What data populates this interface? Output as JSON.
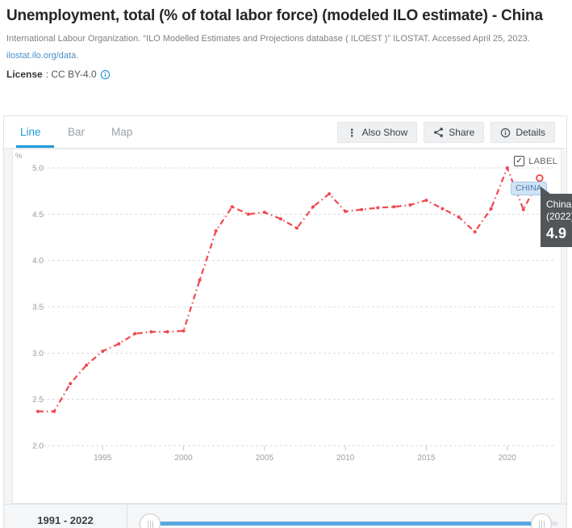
{
  "header": {
    "title": "Unemployment, total (% of total labor force) (modeled ILO estimate) - China",
    "source_citation": "International Labour Organization. “ILO Modelled Estimates and Projections database ( ILOEST )” ILOSTAT. Accessed April 25, 2023.",
    "source_link": "ilostat.ilo.org/data.",
    "license": {
      "label": "License",
      "value": ": CC BY-4.0"
    }
  },
  "toolbar": {
    "tabs": [
      {
        "label": "Line",
        "active": true
      },
      {
        "label": "Bar",
        "active": false
      },
      {
        "label": "Map",
        "active": false
      }
    ],
    "buttons": [
      {
        "label": "Also Show",
        "icon": "kebab-menu-icon"
      },
      {
        "label": "Share",
        "icon": "share-icon"
      },
      {
        "label": "Details",
        "icon": "info-icon"
      }
    ]
  },
  "chart": {
    "unit_label": "%",
    "label_toggle": {
      "label": "LABEL",
      "checked": true
    },
    "series_chip": "CHINA",
    "tooltip": {
      "country": "China",
      "year": "(2022)",
      "value": "4.9"
    }
  },
  "chart_data": {
    "type": "line",
    "title": "Unemployment, total (% of total labor force) (modeled ILO estimate) - China",
    "ylabel": "%",
    "ylim": [
      2.0,
      5.0
    ],
    "yticks": [
      2.0,
      2.5,
      3.0,
      3.5,
      4.0,
      4.5,
      5.0
    ],
    "xticks": [
      1995,
      2000,
      2005,
      2010,
      2015,
      2020
    ],
    "grid": "horizontal-dashed",
    "legend": "none",
    "line_style": "red dash-dot with point markers, last point open circle",
    "line_color": "#f0484e",
    "x": [
      1991,
      1992,
      1993,
      1994,
      1995,
      1996,
      1997,
      1998,
      1999,
      2000,
      2001,
      2002,
      2003,
      2004,
      2005,
      2006,
      2007,
      2008,
      2009,
      2010,
      2011,
      2012,
      2013,
      2014,
      2015,
      2016,
      2017,
      2018,
      2019,
      2020,
      2021,
      2022
    ],
    "series": [
      {
        "name": "China",
        "values": [
          2.37,
          2.37,
          2.67,
          2.87,
          3.02,
          3.1,
          3.21,
          3.23,
          3.23,
          3.24,
          3.79,
          4.32,
          4.58,
          4.5,
          4.52,
          4.45,
          4.35,
          4.58,
          4.72,
          4.53,
          4.55,
          4.57,
          4.58,
          4.6,
          4.65,
          4.56,
          4.47,
          4.31,
          4.56,
          5.0,
          4.55,
          4.89
        ]
      }
    ],
    "highlighted_point": {
      "year": 2022,
      "value": 4.9
    }
  },
  "footer": {
    "range_label": "1991 - 2022"
  },
  "colors": {
    "accent_blue": "#1e9bd7",
    "link_blue": "#4a8fc7",
    "line_red": "#f0484e",
    "tooltip_bg": "#525559",
    "chip_bg": "#cfe3f5"
  }
}
